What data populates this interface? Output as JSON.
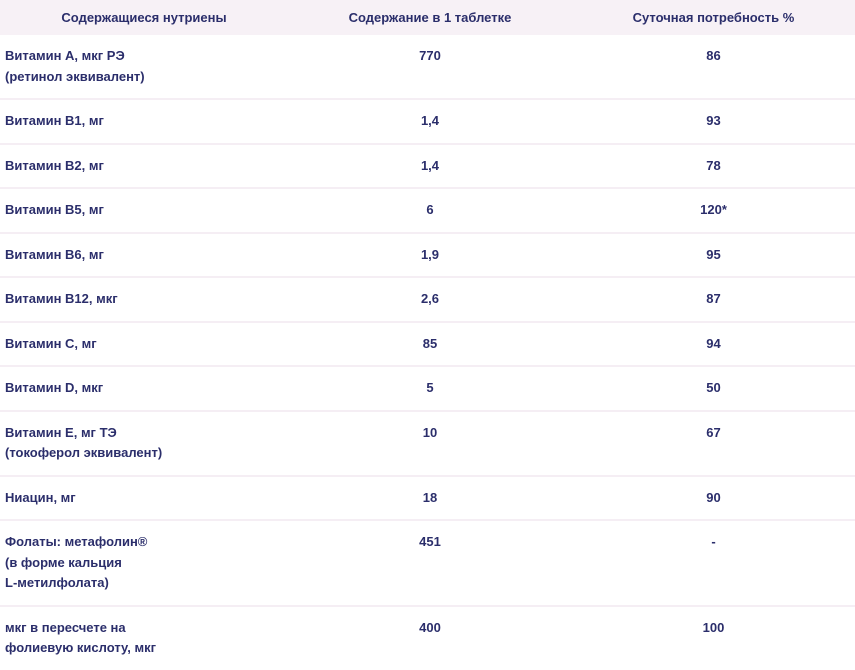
{
  "headers": {
    "nutrients": "Содержащиеся нутриены",
    "per_tablet": "Содержание в 1 таблетке",
    "daily_need": "Суточная потребность %"
  },
  "rows": [
    {
      "name": [
        "Витамин А, мкг РЭ",
        "(ретинол эквивалент)"
      ],
      "per_tablet": "770",
      "daily": "86"
    },
    {
      "name": [
        "Витамин B1, мг"
      ],
      "per_tablet": "1,4",
      "daily": "93"
    },
    {
      "name": [
        "Витамин B2, мг"
      ],
      "per_tablet": "1,4",
      "daily": "78"
    },
    {
      "name": [
        "Витамин B5, мг"
      ],
      "per_tablet": "6",
      "daily": "120*"
    },
    {
      "name": [
        "Витамин B6, мг"
      ],
      "per_tablet": "1,9",
      "daily": "95"
    },
    {
      "name": [
        "Витамин B12, мкг"
      ],
      "per_tablet": "2,6",
      "daily": "87"
    },
    {
      "name": [
        "Витамин C, мг"
      ],
      "per_tablet": "85",
      "daily": "94"
    },
    {
      "name": [
        "Витамин D, мкг"
      ],
      "per_tablet": "5",
      "daily": "50"
    },
    {
      "name": [
        "Витамин E, мг ТЭ",
        "(токоферол эквивалент)"
      ],
      "per_tablet": "10",
      "daily": "67"
    },
    {
      "name": [
        "Ниацин, мг"
      ],
      "per_tablet": "18",
      "daily": "90"
    },
    {
      "name": [
        "Фолаты: метафолин®",
        "(в форме кальция",
        "L-метилфолата)"
      ],
      "per_tablet": "451",
      "daily": "-"
    },
    {
      "name": [
        "мкг в пересчете на",
        "фолиевую кислоту, мкг"
      ],
      "per_tablet": "400",
      "daily": "100"
    }
  ],
  "colors": {
    "text": "#2b2e6b",
    "header_bg": "#f7f1f6",
    "row_divider": "#f5eef4"
  }
}
